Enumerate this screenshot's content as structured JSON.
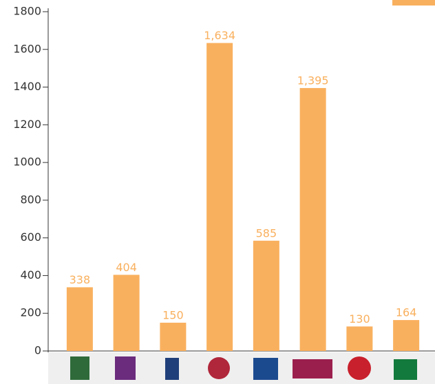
{
  "chart_data": {
    "type": "bar",
    "categories": [
      null,
      null,
      null,
      null,
      null,
      null,
      null,
      null
    ],
    "values": [
      338,
      404,
      150,
      1634,
      585,
      1395,
      130,
      164
    ],
    "value_labels": [
      "338",
      "404",
      "150",
      "1,634",
      "585",
      "1,395",
      "130",
      "164"
    ],
    "color": "#f9b05e",
    "ylim": [
      0,
      1800
    ],
    "yticks": [
      0,
      200,
      400,
      600,
      800,
      1000,
      1200,
      1400,
      1600,
      1800
    ]
  }
}
